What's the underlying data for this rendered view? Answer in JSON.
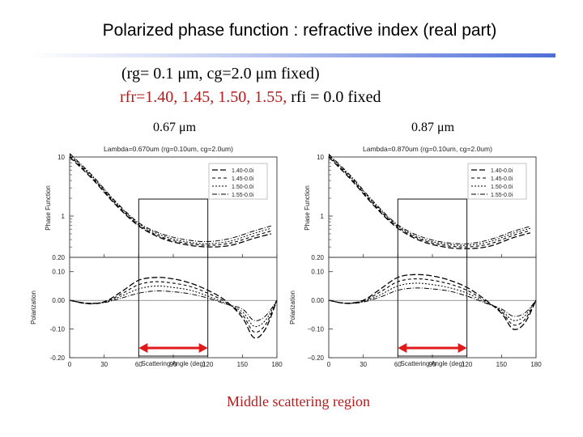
{
  "slide": {
    "title": "Polarized phase function : refractive index (real part)",
    "params_line1": "(rg= 0.1 μm,  cg=2.0 μm  fixed)",
    "params_line2_red": "rfr=1.40,  1.45,  1.50,  1.55,",
    "params_line2_black": "rfi = 0.0 fixed",
    "caption": "Middle scattering region",
    "accent_color": "#b51b1b"
  },
  "panels": [
    {
      "wavelength_label": "0.67 μm",
      "plot_title": "Lambda=0.670um (rg=0.10um, cg=2.0um)",
      "legend": [
        "1.40-0.0i",
        "1.45-0.0i",
        "1.50-0.0i",
        "1.55-0.0i"
      ]
    },
    {
      "wavelength_label": "0.87 μm",
      "plot_title": "Lambda=0.870um (rg=0.10um, cg=2.0um)",
      "legend": [
        "1.40-0.0i",
        "1.45-0.0i",
        "1.50-0.0i",
        "1.55-0.0i"
      ]
    }
  ],
  "axes": {
    "top_ylabel": "Phase Function",
    "top_yticks": [
      "10",
      "1",
      "0.20"
    ],
    "bottom_ylabel": "Polarization",
    "bottom_yticks": [
      "0.10",
      "0.00",
      "-0.10",
      "-0.20"
    ],
    "bottom_yticks_right": [
      "0.10",
      "0.00",
      "−0.10",
      "−0.20"
    ],
    "xlabel": "Scattering Angle (deg)",
    "xticks": [
      "0",
      "30",
      "60",
      "90",
      "120",
      "150",
      "180"
    ]
  },
  "chart_data": [
    {
      "type": "line",
      "title": "Lambda=0.670um (rg=0.10um, cg=2.0um)",
      "xlabel": "Scattering Angle (deg)",
      "ylabel": "Phase Function",
      "yscale": "log",
      "xlim": [
        0,
        180
      ],
      "ylim": [
        0.2,
        10
      ],
      "x": [
        0,
        20,
        40,
        60,
        80,
        100,
        120,
        140,
        160,
        175
      ],
      "series": [
        {
          "name": "1.40-0.0i",
          "values": [
            10.0,
            4.2,
            1.55,
            0.68,
            0.42,
            0.33,
            0.3,
            0.32,
            0.42,
            0.5
          ]
        },
        {
          "name": "1.45-0.0i",
          "values": [
            10.5,
            4.4,
            1.62,
            0.71,
            0.44,
            0.35,
            0.32,
            0.35,
            0.46,
            0.56
          ]
        },
        {
          "name": "1.50-0.0i",
          "values": [
            11.0,
            4.6,
            1.69,
            0.74,
            0.47,
            0.37,
            0.34,
            0.38,
            0.51,
            0.62
          ]
        },
        {
          "name": "1.55-0.0i",
          "values": [
            11.5,
            4.8,
            1.76,
            0.77,
            0.5,
            0.4,
            0.37,
            0.42,
            0.56,
            0.68
          ]
        }
      ]
    },
    {
      "type": "line",
      "title": "",
      "xlabel": "Scattering Angle (deg)",
      "ylabel": "Polarization",
      "xlim": [
        0,
        180
      ],
      "ylim": [
        -0.2,
        0.15
      ],
      "x": [
        0,
        15,
        30,
        45,
        60,
        75,
        90,
        105,
        120,
        135,
        150,
        160,
        170,
        180
      ],
      "series": [
        {
          "name": "1.40-0.0i",
          "values": [
            0,
            -0.01,
            -0.005,
            0.03,
            0.07,
            0.08,
            0.075,
            0.06,
            0.035,
            0.0,
            -0.06,
            -0.13,
            -0.1,
            0.0
          ]
        },
        {
          "name": "1.45-0.0i",
          "values": [
            0,
            -0.01,
            -0.006,
            0.022,
            0.055,
            0.065,
            0.06,
            0.048,
            0.025,
            -0.005,
            -0.05,
            -0.11,
            -0.085,
            0.0
          ]
        },
        {
          "name": "1.50-0.0i",
          "values": [
            0,
            -0.01,
            -0.007,
            0.015,
            0.04,
            0.05,
            0.045,
            0.035,
            0.015,
            -0.01,
            -0.04,
            -0.09,
            -0.07,
            0.0
          ]
        },
        {
          "name": "1.55-0.0i",
          "values": [
            0,
            -0.012,
            -0.008,
            0.008,
            0.025,
            0.033,
            0.03,
            0.022,
            0.008,
            -0.012,
            -0.03,
            -0.07,
            -0.055,
            0.0
          ]
        }
      ]
    },
    {
      "type": "line",
      "title": "Lambda=0.870um (rg=0.10um, cg=2.0um)",
      "xlabel": "Scattering Angle (deg)",
      "ylabel": "Phase Function",
      "yscale": "log",
      "xlim": [
        0,
        180
      ],
      "ylim": [
        0.2,
        10
      ],
      "x": [
        0,
        20,
        40,
        60,
        80,
        100,
        120,
        140,
        160,
        175
      ],
      "series": [
        {
          "name": "1.40-0.0i",
          "values": [
            10.0,
            4.0,
            1.45,
            0.62,
            0.38,
            0.3,
            0.28,
            0.31,
            0.43,
            0.52
          ]
        },
        {
          "name": "1.45-0.0i",
          "values": [
            10.4,
            4.2,
            1.52,
            0.65,
            0.4,
            0.32,
            0.3,
            0.34,
            0.47,
            0.57
          ]
        },
        {
          "name": "1.50-0.0i",
          "values": [
            10.8,
            4.4,
            1.59,
            0.68,
            0.42,
            0.34,
            0.32,
            0.37,
            0.51,
            0.62
          ]
        },
        {
          "name": "1.55-0.0i",
          "values": [
            11.2,
            4.6,
            1.66,
            0.71,
            0.45,
            0.36,
            0.34,
            0.4,
            0.55,
            0.67
          ]
        }
      ]
    },
    {
      "type": "line",
      "title": "",
      "xlabel": "Scattering Angle (deg)",
      "ylabel": "Polarization",
      "xlim": [
        0,
        180
      ],
      "ylim": [
        -0.2,
        0.15
      ],
      "x": [
        0,
        15,
        30,
        45,
        60,
        75,
        90,
        105,
        120,
        135,
        150,
        160,
        170,
        180
      ],
      "series": [
        {
          "name": "1.40-0.0i",
          "values": [
            0,
            -0.01,
            0.0,
            0.04,
            0.08,
            0.09,
            0.085,
            0.07,
            0.045,
            0.005,
            -0.045,
            -0.1,
            -0.08,
            0.0
          ]
        },
        {
          "name": "1.45-0.0i",
          "values": [
            0,
            -0.01,
            -0.002,
            0.03,
            0.065,
            0.075,
            0.07,
            0.057,
            0.035,
            0.0,
            -0.04,
            -0.085,
            -0.068,
            0.0
          ]
        },
        {
          "name": "1.50-0.0i",
          "values": [
            0,
            -0.01,
            -0.004,
            0.02,
            0.05,
            0.06,
            0.055,
            0.044,
            0.025,
            -0.005,
            -0.035,
            -0.07,
            -0.055,
            0.0
          ]
        },
        {
          "name": "1.55-0.0i",
          "values": [
            0,
            -0.011,
            -0.006,
            0.012,
            0.035,
            0.043,
            0.04,
            0.032,
            0.015,
            -0.008,
            -0.03,
            -0.055,
            -0.045,
            0.0
          ]
        }
      ]
    }
  ]
}
